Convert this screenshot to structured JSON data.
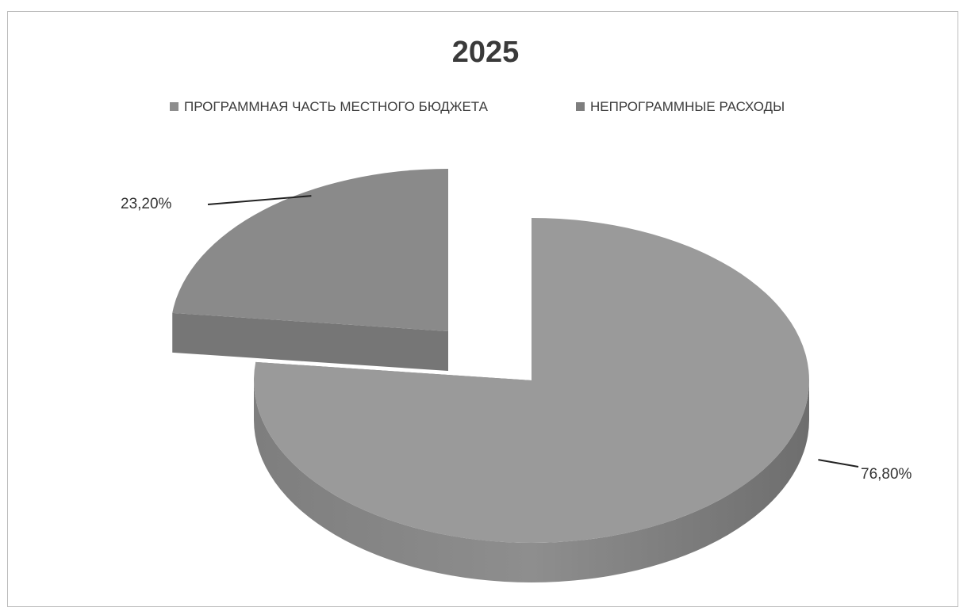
{
  "chart_data": {
    "type": "pie",
    "style": "3d-exploded",
    "title": "2025",
    "legend_position": "top",
    "categories": [
      "ПРОГРАММНАЯ ЧАСТЬ МЕСТНОГО БЮДЖЕТА",
      "НЕПРОГРАММНЫЕ РАСХОДЫ"
    ],
    "values": [
      76.8,
      23.2
    ],
    "data_labels": [
      "76,80%",
      "23,20%"
    ],
    "colors": [
      "#9a9a9a",
      "#8a8a8a"
    ]
  }
}
